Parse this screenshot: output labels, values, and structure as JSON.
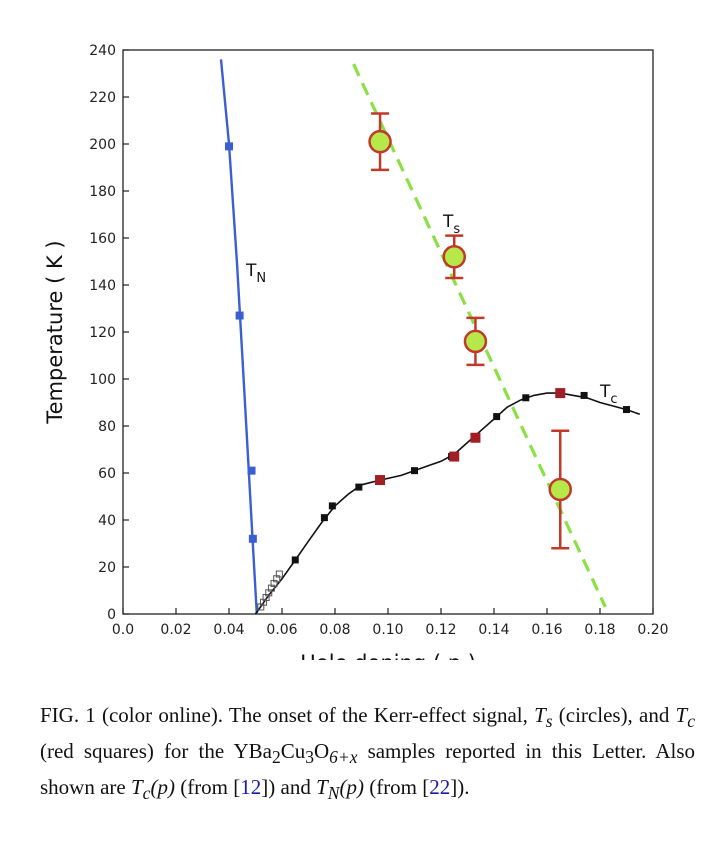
{
  "chart_data": {
    "type": "scatter",
    "xlabel": "Hole doping ( p )",
    "ylabel": "Temperature ( K )",
    "xlim": [
      0.0,
      0.2
    ],
    "ylim": [
      0,
      240
    ],
    "xticks": [
      "0.0",
      "0.02",
      "0.04",
      "0.06",
      "0.08",
      "0.10",
      "0.12",
      "0.14",
      "0.16",
      "0.18",
      "0.20"
    ],
    "yticks": [
      "0",
      "20",
      "40",
      "60",
      "80",
      "100",
      "120",
      "140",
      "160",
      "180",
      "200",
      "220",
      "240"
    ],
    "grid": false,
    "series": [
      {
        "name": "T_N",
        "label_main": "T",
        "label_sub": "N",
        "color": "#3b5fd0",
        "curve": [
          [
            0.037,
            236
          ],
          [
            0.04,
            200
          ],
          [
            0.043,
            150
          ],
          [
            0.045,
            110
          ],
          [
            0.047,
            70
          ],
          [
            0.049,
            30
          ],
          [
            0.0505,
            0
          ]
        ],
        "points": [
          [
            0.04,
            199
          ],
          [
            0.044,
            127
          ],
          [
            0.0485,
            61
          ],
          [
            0.049,
            32
          ]
        ]
      },
      {
        "name": "T_c",
        "label_main": "T",
        "label_sub": "c",
        "color": "#111111",
        "curve": [
          [
            0.05,
            0
          ],
          [
            0.055,
            8
          ],
          [
            0.06,
            15
          ],
          [
            0.065,
            23
          ],
          [
            0.07,
            31
          ],
          [
            0.075,
            39
          ],
          [
            0.08,
            46
          ],
          [
            0.085,
            51
          ],
          [
            0.09,
            55
          ],
          [
            0.097,
            57
          ],
          [
            0.105,
            59
          ],
          [
            0.11,
            61
          ],
          [
            0.115,
            63
          ],
          [
            0.12,
            65
          ],
          [
            0.125,
            68
          ],
          [
            0.13,
            73
          ],
          [
            0.135,
            78
          ],
          [
            0.14,
            83
          ],
          [
            0.145,
            88
          ],
          [
            0.15,
            91
          ],
          [
            0.155,
            93
          ],
          [
            0.16,
            94
          ],
          [
            0.165,
            94
          ],
          [
            0.17,
            93
          ],
          [
            0.175,
            92
          ],
          [
            0.18,
            90
          ],
          [
            0.19,
            87
          ],
          [
            0.195,
            85
          ]
        ],
        "points": [
          [
            0.065,
            23
          ],
          [
            0.076,
            41
          ],
          [
            0.079,
            46
          ],
          [
            0.089,
            54
          ],
          [
            0.11,
            61
          ],
          [
            0.124,
            67
          ],
          [
            0.141,
            84
          ],
          [
            0.152,
            92
          ],
          [
            0.174,
            93
          ],
          [
            0.19,
            87
          ]
        ],
        "open_points": [
          [
            0.052,
            3
          ],
          [
            0.053,
            5
          ],
          [
            0.054,
            7
          ],
          [
            0.055,
            9
          ],
          [
            0.056,
            11
          ],
          [
            0.057,
            13
          ],
          [
            0.058,
            15
          ],
          [
            0.059,
            17
          ]
        ],
        "red_points": [
          [
            0.097,
            57
          ],
          [
            0.125,
            67
          ],
          [
            0.133,
            75
          ],
          [
            0.165,
            94
          ]
        ],
        "red_color": "#a01e24"
      },
      {
        "name": "T_s",
        "label_main": "T",
        "label_sub": "s",
        "color": "#8be046",
        "line": [
          [
            0.087,
            234
          ],
          [
            0.182,
            3
          ]
        ],
        "circle_fill": "#b6e84a",
        "circle_edge": "#c0392b",
        "points": [
          {
            "x": 0.097,
            "y": 201,
            "err_low": 12,
            "err_high": 12
          },
          {
            "x": 0.125,
            "y": 152,
            "err_low": 9,
            "err_high": 9
          },
          {
            "x": 0.133,
            "y": 116,
            "err_low": 10,
            "err_high": 10
          },
          {
            "x": 0.165,
            "y": 53,
            "err_low": 25,
            "err_high": 25
          }
        ]
      }
    ]
  },
  "caption": {
    "p1": "FIG. 1 (color online).   The onset of the Kerr-effect signal, ",
    "ts": "T",
    "ts_sub": "s",
    "p2": " (circles), and ",
    "tc": "T",
    "tc_sub": "c",
    "p3": " (red squares) for the YBa",
    "s2": "2",
    "p4": "Cu",
    "s3": "3",
    "p5": "O",
    "s6": "6+x",
    "p6": " samples reported in this Letter. Also shown are ",
    "tcp": "T",
    "tcp_sub": "c",
    "tcp_arg": "(p)",
    "p7": " (from [",
    "ref1": "12",
    "p8": "]) and ",
    "tnp": "T",
    "tnp_sub": "N",
    "tnp_arg": "(p)",
    "p9": " (from [",
    "ref2": "22",
    "p10": "])."
  }
}
